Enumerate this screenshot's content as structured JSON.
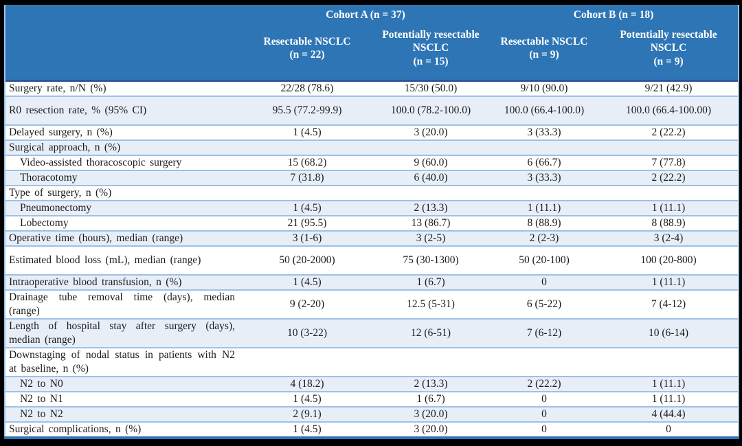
{
  "table": {
    "cohorts": [
      {
        "label": "Cohort A (n = 37)"
      },
      {
        "label": "Cohort B (n = 18)"
      }
    ],
    "subheaders": [
      {
        "title": "Resectable NSCLC",
        "n": "(n = 22)"
      },
      {
        "title": "Potentially resectable NSCLC",
        "n": "(n = 15)"
      },
      {
        "title": "Resectable NSCLC",
        "n": "(n = 9)"
      },
      {
        "title": "Potentially resectable NSCLC",
        "n": "(n = 9)"
      }
    ],
    "rows": [
      {
        "label": "Surgery rate, n/N (%)",
        "values": [
          "22/28 (78.6)",
          "15/30 (50.0)",
          "9/10 (90.0)",
          "9/21 (42.9)"
        ],
        "indent": false,
        "tall": false
      },
      {
        "label": "R0 resection rate, % (95% CI)",
        "values": [
          "95.5 (77.2-99.9)",
          "100.0 (78.2-100.0)",
          "100.0 (66.4-100.0)",
          "100.0 (66.4-100.00)"
        ],
        "indent": false,
        "tall": true
      },
      {
        "label": "Delayed surgery, n (%)",
        "values": [
          "1 (4.5)",
          "3 (20.0)",
          "3 (33.3)",
          "2 (22.2)"
        ],
        "indent": false,
        "tall": false
      },
      {
        "label": "Surgical approach, n (%)",
        "values": [
          "",
          "",
          "",
          ""
        ],
        "indent": false,
        "tall": false
      },
      {
        "label": "Video-assisted thoracoscopic surgery",
        "values": [
          "15 (68.2)",
          "9 (60.0)",
          "6 (66.7)",
          "7 (77.8)"
        ],
        "indent": true,
        "tall": false
      },
      {
        "label": "Thoracotomy",
        "values": [
          "7 (31.8)",
          "6 (40.0)",
          "3 (33.3)",
          "2 (22.2)"
        ],
        "indent": true,
        "tall": false
      },
      {
        "label": "Type of surgery, n (%)",
        "values": [
          "",
          "",
          "",
          ""
        ],
        "indent": false,
        "tall": false
      },
      {
        "label": "Pneumonectomy",
        "values": [
          "1 (4.5)",
          "2 (13.3)",
          "1 (11.1)",
          "1 (11.1)"
        ],
        "indent": true,
        "tall": false
      },
      {
        "label": "Lobectomy",
        "values": [
          "21 (95.5)",
          "13 (86.7)",
          "8 (88.9)",
          "8 (88.9)"
        ],
        "indent": true,
        "tall": false
      },
      {
        "label": "Operative time (hours), median (range)",
        "values": [
          "3 (1-6)",
          "3 (2-5)",
          "2 (2-3)",
          "3 (2-4)"
        ],
        "indent": false,
        "tall": false
      },
      {
        "label": "Estimated blood loss (mL), median (range)",
        "values": [
          "50 (20-2000)",
          "75 (30-1300)",
          "50 (20-100)",
          "100 (20-800)"
        ],
        "indent": false,
        "tall": true
      },
      {
        "label": "Intraoperative blood transfusion, n (%)",
        "values": [
          "1 (4.5)",
          "1 (6.7)",
          "0",
          "1 (11.1)"
        ],
        "indent": false,
        "tall": false
      },
      {
        "label": "Drainage tube removal time (days), median (range)",
        "values": [
          "9 (2-20)",
          "12.5 (5-31)",
          "6 (5-22)",
          "7 (4-12)"
        ],
        "indent": false,
        "tall": true
      },
      {
        "label": "Length of hospital stay after surgery (days), median (range)",
        "values": [
          "10 (3-22)",
          "12 (6-51)",
          "7 (6-12)",
          "10 (6-14)"
        ],
        "indent": false,
        "tall": true
      },
      {
        "label": "Downstaging of nodal status in patients with N2 at baseline, n (%)",
        "values": [
          "",
          "",
          "",
          ""
        ],
        "indent": false,
        "tall": true
      },
      {
        "label": "N2 to N0",
        "values": [
          "4 (18.2)",
          "2 (13.3)",
          "2 (22.2)",
          "1 (11.1)"
        ],
        "indent": true,
        "tall": false
      },
      {
        "label": "N2 to N1",
        "values": [
          "1 (4.5)",
          "1 (6.7)",
          "0",
          "1 (11.1)"
        ],
        "indent": true,
        "tall": false
      },
      {
        "label": "N2 to N2",
        "values": [
          "2 (9.1)",
          "3 (20.0)",
          "0",
          "4 (44.4)"
        ],
        "indent": true,
        "tall": false
      },
      {
        "label": "Surgical complications, n (%)",
        "values": [
          "1 (4.5)",
          "3 (20.0)",
          "0",
          "0"
        ],
        "indent": false,
        "tall": false
      }
    ],
    "colors": {
      "header_bg": "#2E75B5",
      "header_text": "#FFFFFF",
      "header_divider": "#2F5496",
      "row_shaded_bg": "#E8EEF8",
      "row_border": "#9CC2E5",
      "outer_bottom_border": "#2E75B5",
      "frame": "#000000"
    }
  }
}
